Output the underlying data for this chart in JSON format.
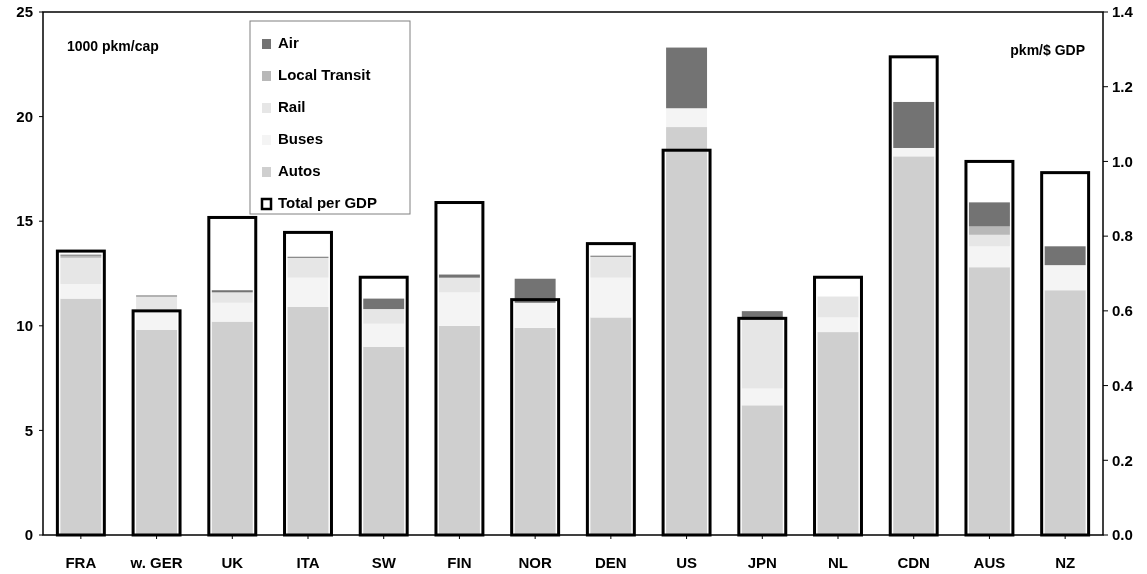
{
  "chart_data": {
    "type": "bar",
    "stacked": true,
    "ylabel": "1000 pkm/cap",
    "y2label": "pkm/$ GDP",
    "categories": [
      "FRA",
      "w. GER",
      "UK",
      "ITA",
      "SW",
      "FIN",
      "NOR",
      "DEN",
      "US",
      "JPN",
      "NL",
      "CDN",
      "AUS",
      "NZ"
    ],
    "series": [
      {
        "name": "Autos",
        "color": "#cfcfcf",
        "values": [
          11.3,
          9.8,
          10.2,
          10.9,
          9.0,
          10.0,
          9.9,
          10.4,
          19.5,
          6.2,
          9.7,
          18.1,
          12.8,
          11.7
        ]
      },
      {
        "name": "Buses",
        "color": "#f4f4f4",
        "values": [
          0.7,
          1.0,
          0.9,
          1.4,
          1.1,
          1.6,
          1.2,
          1.9,
          0.9,
          0.8,
          0.7,
          0.4,
          1.0,
          1.2
        ]
      },
      {
        "name": "Rail",
        "color": "#e6e6e6",
        "values": [
          1.25,
          0.6,
          0.5,
          0.95,
          0.7,
          0.7,
          null,
          1.0,
          0,
          3.3,
          1.0,
          0,
          0.55,
          0
        ]
      },
      {
        "name": "Local Transit",
        "color": "#b8b8b8",
        "values": [
          0.1,
          null,
          0,
          0,
          0,
          0,
          0,
          null,
          0,
          0,
          null,
          0,
          0.4,
          0
        ]
      },
      {
        "name": "Air",
        "color": "#737373",
        "values": [
          0.05,
          0.05,
          0.1,
          0.05,
          0.5,
          0.15,
          1.15,
          0.05,
          2.9,
          0.4,
          0,
          2.2,
          1.15,
          0.9
        ]
      },
      {
        "name": "Total per GDP",
        "color": "#000000",
        "axis": "y2",
        "values": [
          0.76,
          0.6,
          0.85,
          0.81,
          0.69,
          0.89,
          0.63,
          0.78,
          1.03,
          0.58,
          0.69,
          1.28,
          1.0,
          0.97
        ]
      }
    ],
    "ylim": [
      0,
      25
    ],
    "yticks": [
      0,
      5,
      10,
      15,
      20,
      25
    ],
    "y2lim": [
      0,
      1.4
    ],
    "y2ticks": [
      {
        "value": 0,
        "label": "0.0"
      },
      0.2,
      0.4,
      0.6,
      0.8,
      {
        "value": 1,
        "label": "1.0"
      },
      1.2,
      1.4
    ],
    "legend": "top",
    "grid": false
  }
}
